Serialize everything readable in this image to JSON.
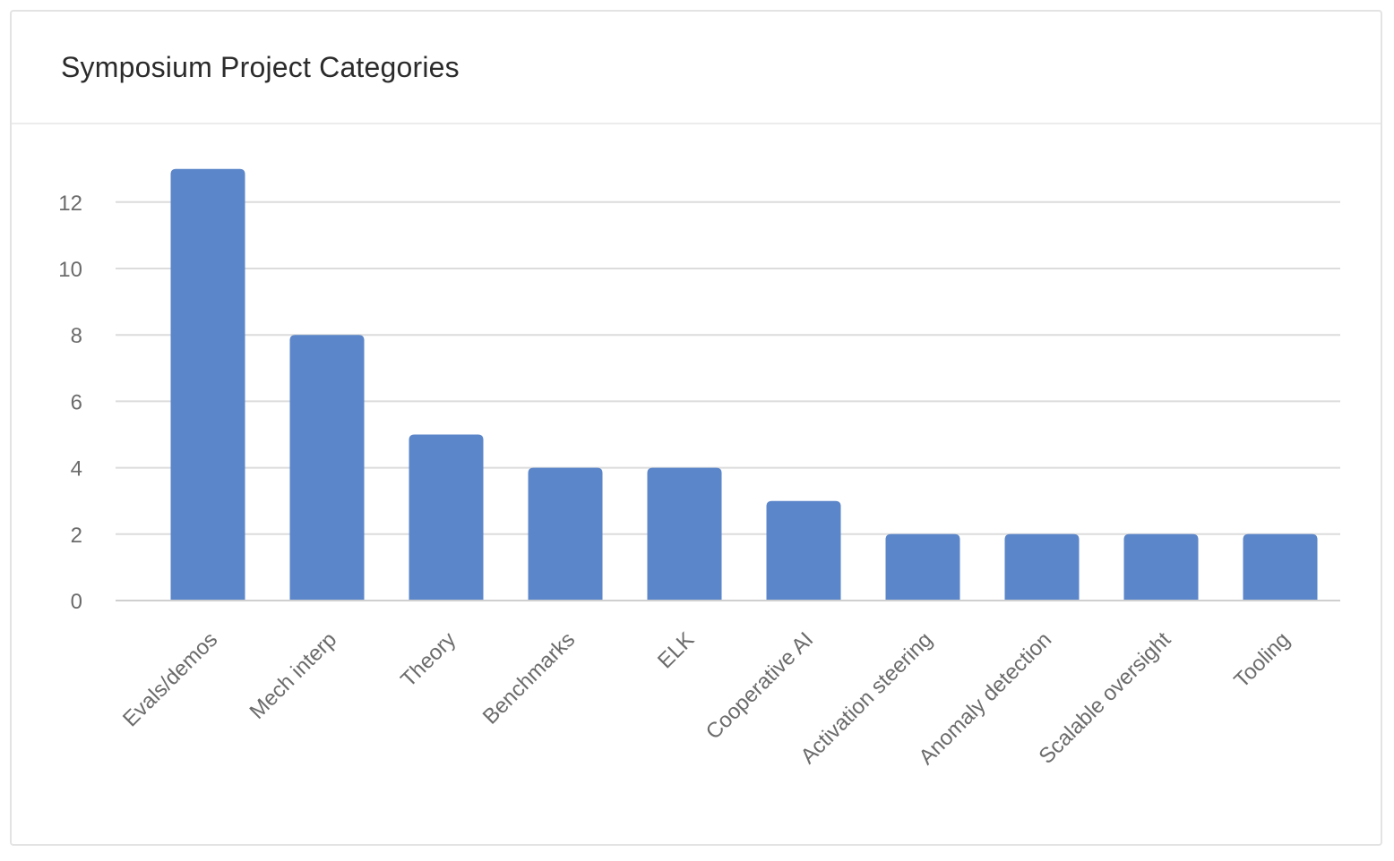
{
  "card": {
    "title": "Symposium Project Categories"
  },
  "colors": {
    "bar": "#5b86c9",
    "grid": "#dcdcdc",
    "axis": "#cfcfcf",
    "tick_text": "#6b6b6b"
  },
  "chart_data": {
    "type": "bar",
    "title": "Symposium Project Categories",
    "categories": [
      "Evals/demos",
      "Mech interp",
      "Theory",
      "Benchmarks",
      "ELK",
      "Cooperative AI",
      "Activation steering",
      "Anomaly detection",
      "Scalable oversight",
      "Tooling"
    ],
    "values": [
      13,
      8,
      5,
      4,
      4,
      3,
      2,
      2,
      2,
      2
    ],
    "xlabel": "",
    "ylabel": "",
    "ylim": [
      0,
      12
    ],
    "yticks": [
      0,
      2,
      4,
      6,
      8,
      10,
      12
    ],
    "grid": true,
    "legend": "none"
  }
}
